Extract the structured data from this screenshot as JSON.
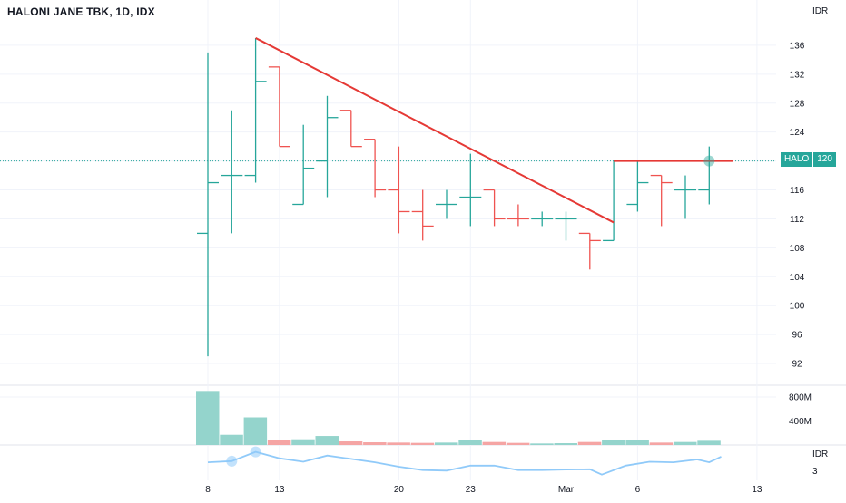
{
  "header": {
    "title": "HALONI JANE TBK, 1D, IDX",
    "currency": "IDR"
  },
  "price_badge": {
    "symbol": "HALO",
    "price": "120"
  },
  "lower_pane": {
    "unit": "IDR",
    "last_value": "3"
  },
  "colors": {
    "up": "#26a69a",
    "down": "#ef5350",
    "trendline": "#e53935",
    "indicator": "#90caf9",
    "grid": "#f0f3fa"
  },
  "chart_data": [
    {
      "type": "ohlc",
      "title": "HALONI JANE TBK, 1D, IDX",
      "ylabel": "IDR",
      "y_ticks": [
        92,
        96,
        100,
        104,
        108,
        112,
        116,
        120,
        124,
        128,
        132,
        136
      ],
      "x_ticks": [
        "8",
        "13",
        "20",
        "23",
        "Mar",
        "6",
        "13"
      ],
      "bars": [
        {
          "o": 110,
          "h": 135,
          "l": 93,
          "c": 117,
          "dir": "up"
        },
        {
          "o": 118,
          "h": 127,
          "l": 110,
          "c": 118,
          "dir": "up"
        },
        {
          "o": 118,
          "h": 137,
          "l": 117,
          "c": 131,
          "dir": "up"
        },
        {
          "o": 133,
          "h": 133,
          "l": 122,
          "c": 122,
          "dir": "down"
        },
        {
          "o": 114,
          "h": 125,
          "l": 114,
          "c": 119,
          "dir": "up"
        },
        {
          "o": 120,
          "h": 129,
          "l": 115,
          "c": 126,
          "dir": "up"
        },
        {
          "o": 127,
          "h": 127,
          "l": 122,
          "c": 122,
          "dir": "down"
        },
        {
          "o": 123,
          "h": 123,
          "l": 115,
          "c": 116,
          "dir": "down"
        },
        {
          "o": 116,
          "h": 122,
          "l": 110,
          "c": 113,
          "dir": "down"
        },
        {
          "o": 113,
          "h": 116,
          "l": 109,
          "c": 111,
          "dir": "down"
        },
        {
          "o": 114,
          "h": 116,
          "l": 112,
          "c": 114,
          "dir": "up"
        },
        {
          "o": 115,
          "h": 121,
          "l": 111,
          "c": 115,
          "dir": "up"
        },
        {
          "o": 116,
          "h": 116,
          "l": 111,
          "c": 112,
          "dir": "down"
        },
        {
          "o": 112,
          "h": 114,
          "l": 111,
          "c": 112,
          "dir": "down"
        },
        {
          "o": 112,
          "h": 113,
          "l": 111,
          "c": 112,
          "dir": "up"
        },
        {
          "o": 112,
          "h": 113,
          "l": 109,
          "c": 112,
          "dir": "up"
        },
        {
          "o": 110,
          "h": 110,
          "l": 105,
          "c": 109,
          "dir": "down"
        },
        {
          "o": 109,
          "h": 120,
          "l": 109,
          "c": 120,
          "dir": "up"
        },
        {
          "o": 114,
          "h": 120,
          "l": 113,
          "c": 117,
          "dir": "up"
        },
        {
          "o": 118,
          "h": 118,
          "l": 111,
          "c": 117,
          "dir": "down"
        },
        {
          "o": 116,
          "h": 118,
          "l": 112,
          "c": 116,
          "dir": "up"
        },
        {
          "o": 116,
          "h": 122,
          "l": 114,
          "c": 120,
          "dir": "up"
        }
      ],
      "trendlines": [
        {
          "from_bar": 2,
          "from_price": 137,
          "to_bar": 17,
          "to_price": 111.5
        },
        {
          "from_bar": 17,
          "from_price": 120,
          "to_bar": 22,
          "to_price": 120
        }
      ],
      "last_price": 120,
      "markers": [
        {
          "bar": 21,
          "price": 120
        }
      ],
      "ylim": [
        89,
        140
      ]
    },
    {
      "type": "bar",
      "name": "volume",
      "y_ticks": [
        "400M",
        "800M"
      ],
      "tick_values": [
        400,
        800
      ],
      "values_millions": [
        900,
        170,
        460,
        90,
        95,
        150,
        60,
        45,
        40,
        35,
        40,
        80,
        50,
        35,
        25,
        30,
        50,
        80,
        80,
        40,
        50,
        70
      ],
      "colors": [
        "up",
        "up",
        "up",
        "down",
        "up",
        "up",
        "down",
        "down",
        "down",
        "down",
        "up",
        "up",
        "down",
        "down",
        "up",
        "up",
        "down",
        "up",
        "up",
        "down",
        "up",
        "up"
      ],
      "ylim": [
        0,
        920
      ]
    },
    {
      "type": "line",
      "name": "indicator",
      "values": [
        3.8,
        4.2,
        7.5,
        5.2,
        4.0,
        6.2,
        5.0,
        3.8,
        2.2,
        1.0,
        0.8,
        2.6,
        2.6,
        1.0,
        1.0,
        1.2,
        1.3,
        -0.6,
        2.6,
        4.0,
        3.8,
        4.8,
        3.8,
        5.8
      ],
      "x_positions": [
        0,
        1,
        2,
        3,
        4,
        5,
        6,
        7,
        8,
        9,
        10,
        11,
        12,
        13,
        14,
        15,
        16,
        16.5,
        17.5,
        18.5,
        19.5,
        20.5,
        21,
        21.5
      ],
      "markers": [
        1,
        2
      ],
      "tick": "3",
      "ylim": [
        -2,
        9
      ]
    }
  ]
}
